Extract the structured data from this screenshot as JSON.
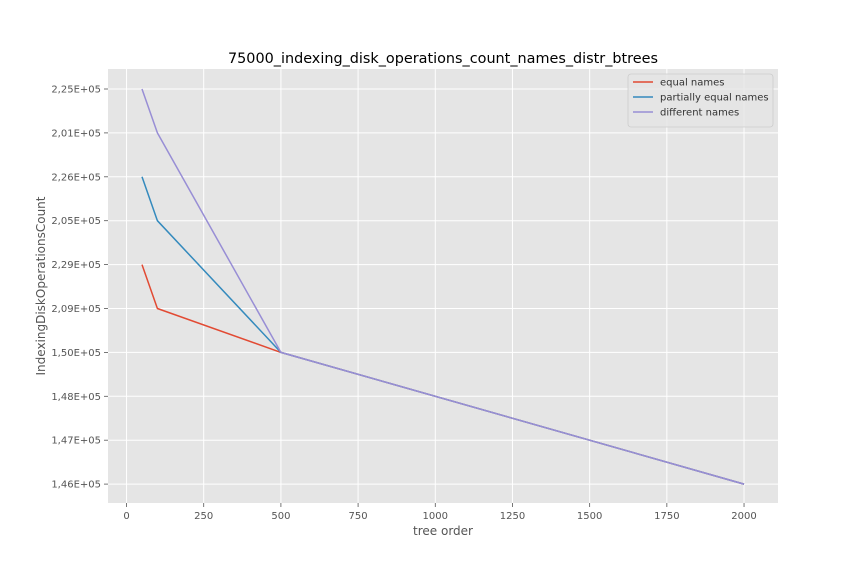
{
  "chart_data": {
    "type": "line",
    "title": "75000_indexing_disk_operations_count_names_distr_btrees",
    "xlabel": "tree order",
    "ylabel": "IndexingDiskOperationsCount",
    "x_ticks": [
      0,
      250,
      500,
      750,
      1000,
      1250,
      1500,
      1750,
      2000
    ],
    "x_tick_labels": [
      "0",
      "250",
      "500",
      "750",
      "1000",
      "1250",
      "1500",
      "1750",
      "2000"
    ],
    "xlim": [
      -60,
      2110
    ],
    "y_axis_type": "categorical",
    "y_categories": [
      "1,46E+05",
      "1,47E+05",
      "1,48E+05",
      "1,50E+05",
      "2,09E+05",
      "2,29E+05",
      "2,05E+05",
      "2,26E+05",
      "2,01E+05",
      "2,25E+05"
    ],
    "x": [
      50,
      100,
      500,
      2000
    ],
    "series": [
      {
        "name": "equal names",
        "color": "#E24A33",
        "values": [
          "2,29E+05",
          "2,09E+05",
          "1,50E+05",
          "1,46E+05"
        ]
      },
      {
        "name": "partially equal names",
        "color": "#348ABD",
        "values": [
          "2,26E+05",
          "2,05E+05",
          "1,50E+05",
          "1,46E+05"
        ]
      },
      {
        "name": "different names",
        "color": "#988ED5",
        "values": [
          "2,25E+05",
          "2,01E+05",
          "1,50E+05",
          "1,46E+05"
        ]
      }
    ],
    "grid": true,
    "legend_position": "top-right",
    "style": {
      "background": "#E5E5E5",
      "grid_color": "#FFFFFF"
    }
  }
}
